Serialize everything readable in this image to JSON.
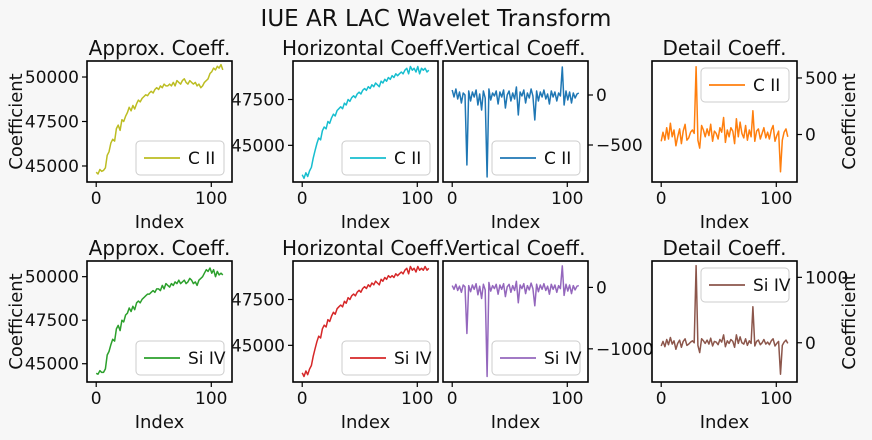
{
  "suptitle": "IUE AR LAC Wavelet Transform",
  "chart_data": [
    {
      "type": "line",
      "title": "Approx. Coeff.",
      "xlabel": "Index",
      "ylabel": "Coefficient",
      "yaxis_side": "left",
      "xlim": [
        -8,
        118
      ],
      "ylim": [
        44100,
        50900
      ],
      "xticks": [
        0,
        100
      ],
      "yticks": [
        45000,
        47500,
        50000
      ],
      "ytick_labels": [
        "45000",
        "47500",
        "50000"
      ],
      "legend_position": "lower right",
      "color": "#bcbd22",
      "series": [
        {
          "name": "C II",
          "values": [
            44650,
            44550,
            44800,
            44700,
            44750,
            44900,
            45600,
            45800,
            46300,
            46500,
            46400,
            47100,
            47300,
            47000,
            47600,
            47500,
            47800,
            48000,
            48300,
            48100,
            48400,
            48200,
            48500,
            48700,
            48600,
            48800,
            48900,
            49000,
            48950,
            49100,
            49200,
            49100,
            49300,
            49400,
            49300,
            49500,
            49400,
            49600,
            49500,
            49500,
            49600,
            49500,
            49700,
            49500,
            49800,
            49700,
            49600,
            49800,
            49900,
            49700,
            49600,
            49800,
            49700,
            49600,
            49700,
            49500,
            49600,
            49400,
            49500,
            49700,
            49800,
            49900,
            50200,
            50300,
            50500,
            50400,
            50600,
            50500,
            50700,
            50400
          ]
        }
      ]
    },
    {
      "type": "line",
      "title": "Horizontal Coeff.",
      "xlabel": "Index",
      "ylabel": "",
      "yaxis_side": "left",
      "xlim": [
        -8,
        118
      ],
      "ylim": [
        43000,
        49600
      ],
      "xticks": [
        0,
        100
      ],
      "yticks": [
        45000,
        47500
      ],
      "ytick_labels": [
        "45000",
        "47500"
      ],
      "legend_position": "lower right",
      "color": "#17becf",
      "series": [
        {
          "name": "C II",
          "values": [
            43400,
            43200,
            43500,
            43300,
            43600,
            43800,
            44300,
            44700,
            45100,
            45400,
            45300,
            45800,
            46000,
            45900,
            46300,
            46200,
            46500,
            46700,
            46600,
            46900,
            47000,
            47100,
            47000,
            47300,
            47200,
            47500,
            47400,
            47600,
            47700,
            47600,
            47800,
            47900,
            47800,
            48000,
            48100,
            48000,
            48200,
            48100,
            48300,
            48200,
            48400,
            48300,
            48200,
            48500,
            48400,
            48600,
            48500,
            48700,
            48600,
            48800,
            48700,
            48900,
            48800,
            48900,
            49000,
            48900,
            49100,
            49200,
            48900,
            49300,
            49100,
            49200,
            49000,
            49300,
            48900,
            49200,
            49100,
            49200,
            49000,
            49100
          ]
        }
      ]
    },
    {
      "type": "line",
      "title": "Vertical Coeff.",
      "xlabel": "Index",
      "ylabel": "",
      "yaxis_side": "right",
      "xlim": [
        -8,
        118
      ],
      "ylim": [
        -870,
        340
      ],
      "xticks": [
        0,
        100
      ],
      "yticks": [
        -500,
        0
      ],
      "ytick_labels": [
        "−500",
        "0"
      ],
      "legend_position": "lower right",
      "color": "#1f77b4",
      "series": [
        {
          "name": "C II",
          "values": [
            50,
            -20,
            60,
            -40,
            30,
            -80,
            20,
            0,
            -700,
            40,
            -60,
            30,
            -20,
            50,
            -100,
            10,
            -150,
            40,
            -30,
            -820,
            60,
            -50,
            20,
            -10,
            40,
            -90,
            30,
            -20,
            50,
            -130,
            0,
            40,
            -60,
            20,
            -40,
            80,
            -200,
            30,
            -10,
            50,
            -80,
            20,
            -30,
            60,
            -10,
            -250,
            40,
            -60,
            30,
            -20,
            50,
            -40,
            10,
            -90,
            40,
            -20,
            30,
            -60,
            20,
            -10,
            280,
            -100,
            40,
            -50,
            30,
            -80,
            20,
            -30,
            10,
            20
          ]
        }
      ]
    },
    {
      "type": "line",
      "title": "Detail Coeff.",
      "xlabel": "Index",
      "ylabel": "Coefficient",
      "yaxis_side": "right",
      "xlim": [
        -8,
        118
      ],
      "ylim": [
        -420,
        650
      ],
      "xticks": [
        0,
        100
      ],
      "yticks": [
        0,
        500
      ],
      "ytick_labels": [
        "0",
        "500"
      ],
      "legend_position": "upper right",
      "color": "#ff7f0e",
      "series": [
        {
          "name": "C II",
          "values": [
            -60,
            20,
            -50,
            60,
            -40,
            100,
            -20,
            40,
            -100,
            -20,
            50,
            -80,
            30,
            90,
            -50,
            -30,
            20,
            40,
            10,
            600,
            -50,
            -120,
            80,
            40,
            -20,
            50,
            -10,
            90,
            -60,
            30,
            10,
            -40,
            60,
            20,
            150,
            -70,
            40,
            -20,
            60,
            30,
            -80,
            140,
            -20,
            110,
            10,
            -30,
            80,
            -50,
            40,
            -20,
            210,
            -60,
            30,
            50,
            -40,
            10,
            60,
            -30,
            20,
            -40,
            40,
            80,
            -60,
            -10,
            30,
            -330,
            -50,
            20,
            50,
            -20
          ]
        }
      ]
    },
    {
      "type": "line",
      "title": "Approx. Coeff.",
      "xlabel": "Index",
      "ylabel": "Coefficient",
      "yaxis_side": "left",
      "xlim": [
        -8,
        118
      ],
      "ylim": [
        43950,
        50900
      ],
      "xticks": [
        0,
        100
      ],
      "yticks": [
        45000,
        47500,
        50000
      ],
      "ytick_labels": [
        "45000",
        "47500",
        "50000"
      ],
      "legend_position": "lower right",
      "color": "#2ca02c",
      "series": [
        {
          "name": "Si IV",
          "values": [
            44450,
            44400,
            44600,
            44500,
            44500,
            44700,
            45500,
            45700,
            46100,
            46400,
            46300,
            47000,
            47200,
            46900,
            47500,
            47400,
            47800,
            47900,
            48200,
            48000,
            48300,
            48100,
            48500,
            48600,
            48500,
            48700,
            48800,
            48900,
            49000,
            49000,
            49100,
            49200,
            49100,
            49300,
            49300,
            49200,
            49500,
            49300,
            49600,
            49500,
            49400,
            49600,
            49500,
            49700,
            49600,
            49800,
            49600,
            49700,
            49800,
            49600,
            49700,
            49900,
            49800,
            49600,
            49700,
            49500,
            49800,
            49900,
            50000,
            50200,
            50400,
            50300,
            50500,
            50200,
            50400,
            50000,
            50300,
            50100,
            50200,
            50100
          ]
        }
      ]
    },
    {
      "type": "line",
      "title": "Horizontal Coeff.",
      "xlabel": "Index",
      "ylabel": "",
      "yaxis_side": "left",
      "xlim": [
        -8,
        118
      ],
      "ylim": [
        43000,
        49600
      ],
      "xticks": [
        0,
        100
      ],
      "yticks": [
        45000,
        47500
      ],
      "ytick_labels": [
        "45000",
        "47500"
      ],
      "legend_position": "lower right",
      "color": "#d62728",
      "series": [
        {
          "name": "Si IV",
          "values": [
            43500,
            43300,
            43600,
            43400,
            43700,
            43900,
            44400,
            44800,
            45200,
            45500,
            45400,
            45900,
            46100,
            46000,
            46400,
            46300,
            46600,
            46800,
            46700,
            47000,
            47100,
            47200,
            47100,
            47400,
            47300,
            47600,
            47500,
            47700,
            47800,
            47700,
            47900,
            48000,
            47900,
            48100,
            48200,
            48100,
            48300,
            48200,
            48400,
            48300,
            48500,
            48400,
            48300,
            48600,
            48500,
            48700,
            48600,
            48800,
            48700,
            48800,
            48700,
            48900,
            48800,
            48900,
            49000,
            48900,
            49100,
            49200,
            48900,
            49300,
            49100,
            49200,
            49000,
            49300,
            49100,
            49200,
            49100,
            49300,
            49100,
            49200
          ]
        }
      ]
    },
    {
      "type": "line",
      "title": "Vertical Coeff.",
      "xlabel": "Index",
      "ylabel": "",
      "yaxis_side": "right",
      "xlim": [
        -8,
        118
      ],
      "ylim": [
        -1540,
        430
      ],
      "xticks": [
        0,
        100
      ],
      "yticks": [
        -1000,
        0
      ],
      "ytick_labels": [
        "−1000",
        "0"
      ],
      "legend_position": "lower right",
      "color": "#9467bd",
      "series": [
        {
          "name": "Si IV",
          "values": [
            30,
            -30,
            50,
            -50,
            20,
            -80,
            40,
            10,
            -750,
            30,
            -70,
            40,
            -30,
            60,
            -120,
            20,
            -180,
            50,
            -40,
            -1450,
            80,
            -60,
            30,
            -20,
            50,
            -110,
            40,
            -30,
            60,
            -150,
            10,
            50,
            -80,
            30,
            -50,
            100,
            -250,
            40,
            -20,
            60,
            -100,
            30,
            -40,
            70,
            -20,
            -300,
            50,
            -70,
            40,
            -30,
            60,
            -50,
            20,
            -110,
            50,
            -30,
            40,
            -80,
            30,
            -20,
            350,
            -130,
            50,
            -60,
            40,
            -100,
            30,
            -40,
            20,
            30
          ]
        }
      ]
    },
    {
      "type": "line",
      "title": "Detail Coeff.",
      "xlabel": "Index",
      "ylabel": "Coefficient",
      "yaxis_side": "right",
      "xlim": [
        -8,
        118
      ],
      "ylim": [
        -600,
        1250
      ],
      "xticks": [
        0,
        100
      ],
      "yticks": [
        0,
        1000
      ],
      "ytick_labels": [
        "0",
        "1000"
      ],
      "legend_position": "upper right",
      "color": "#8c564b",
      "series": [
        {
          "name": "Si IV",
          "values": [
            -50,
            20,
            -60,
            50,
            -30,
            80,
            -20,
            30,
            -100,
            -10,
            40,
            -70,
            20,
            60,
            -40,
            -20,
            10,
            30,
            0,
            1180,
            -40,
            -150,
            60,
            30,
            -10,
            40,
            -20,
            70,
            -50,
            20,
            10,
            -30,
            50,
            10,
            120,
            -60,
            30,
            -10,
            50,
            20,
            -70,
            120,
            -10,
            90,
            0,
            -20,
            60,
            -40,
            30,
            -10,
            550,
            -50,
            20,
            40,
            -30,
            0,
            50,
            -20,
            10,
            -30,
            30,
            60,
            -50,
            -10,
            20,
            -480,
            -40,
            10,
            40,
            -10
          ]
        }
      ]
    }
  ]
}
